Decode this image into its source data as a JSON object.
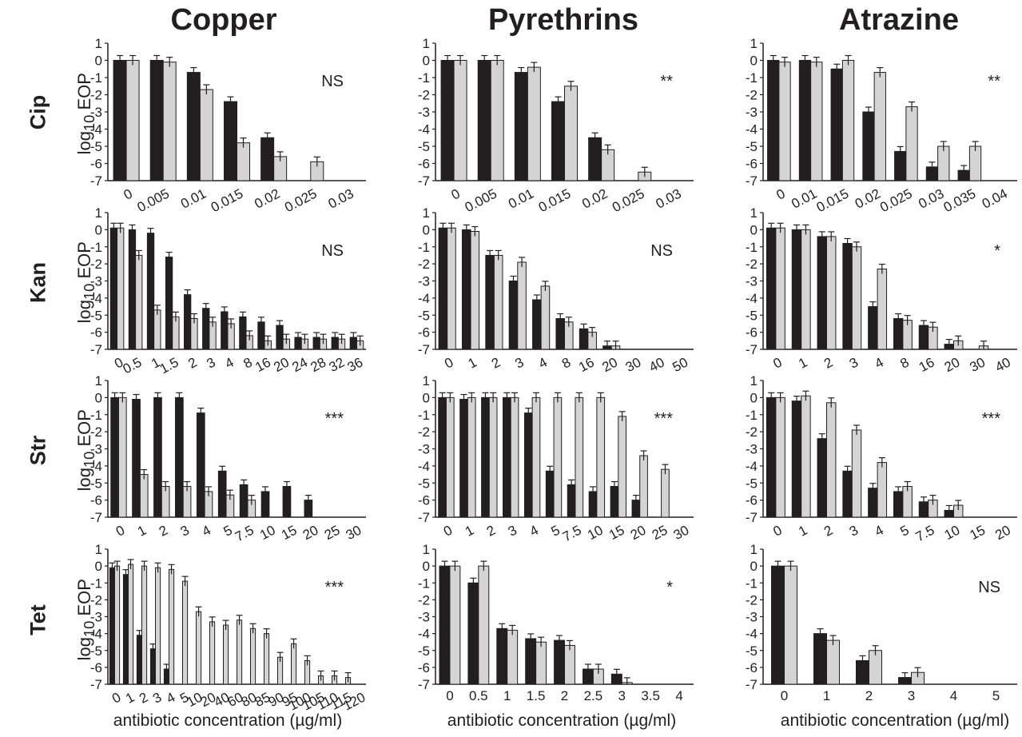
{
  "columns": [
    "Copper",
    "Pyrethrins",
    "Atrazine"
  ],
  "rows": [
    "Cip",
    "Kan",
    "Str",
    "Tet"
  ],
  "ylabel_main": "log",
  "ylabel_sub": "10",
  "ylabel_rest": " EOP",
  "xlabel": "antibiotic concentration (µg/ml)",
  "colors": {
    "series_dark": "#231f20",
    "series_light": "#d4d4d4",
    "axis": "#231f20"
  },
  "chart_data": [
    {
      "type": "bar",
      "row": "Cip",
      "column": "Copper",
      "ylim": [
        -7,
        1
      ],
      "sig": "NS",
      "categories": [
        "0",
        "0.005",
        "0.01",
        "0.015",
        "0.02",
        "0.025",
        "0.03"
      ],
      "series": [
        {
          "values": [
            0,
            0,
            -0.7,
            -2.4,
            -4.5,
            -7,
            -7
          ]
        },
        {
          "values": [
            0,
            -0.1,
            -1.7,
            -4.8,
            -5.6,
            -5.9,
            -7
          ]
        }
      ]
    },
    {
      "type": "bar",
      "row": "Cip",
      "column": "Pyrethrins",
      "ylim": [
        -7,
        1
      ],
      "sig": "**",
      "categories": [
        "0",
        "0.005",
        "0.01",
        "0.015",
        "0.02",
        "0.025",
        "0.03"
      ],
      "series": [
        {
          "values": [
            0,
            0,
            -0.7,
            -2.4,
            -4.5,
            -7,
            -7
          ]
        },
        {
          "values": [
            0,
            0,
            -0.4,
            -1.5,
            -5.2,
            -6.5,
            -7
          ]
        }
      ]
    },
    {
      "type": "bar",
      "row": "Cip",
      "column": "Atrazine",
      "ylim": [
        -7,
        1
      ],
      "sig": "**",
      "categories": [
        "0",
        "0.01",
        "0.015",
        "0.02",
        "0.025",
        "0.03",
        "0.035",
        "0.04"
      ],
      "series": [
        {
          "values": [
            0,
            0,
            -0.5,
            -3.0,
            -5.3,
            -6.2,
            -6.4,
            -7
          ]
        },
        {
          "values": [
            -0.1,
            -0.1,
            0,
            -0.7,
            -2.7,
            -5.0,
            -5.0,
            -7
          ]
        }
      ]
    },
    {
      "type": "bar",
      "row": "Kan",
      "column": "Copper",
      "ylim": [
        -7,
        1
      ],
      "sig": "NS",
      "categories": [
        "0",
        "0.5",
        "1",
        "1.5",
        "2",
        "3",
        "4",
        "8",
        "16",
        "20",
        "24",
        "28",
        "32",
        "36"
      ],
      "series": [
        {
          "values": [
            0.1,
            0,
            -0.2,
            -1.6,
            -3.8,
            -4.6,
            -4.8,
            -5.1,
            -5.4,
            -5.6,
            -6.3,
            -6.3,
            -6.3,
            -6.3
          ]
        },
        {
          "values": [
            0.1,
            -1.5,
            -4.7,
            -5.1,
            -5.2,
            -5.4,
            -5.5,
            -6.2,
            -6.5,
            -6.4,
            -6.4,
            -6.4,
            -6.4,
            -6.5
          ]
        }
      ]
    },
    {
      "type": "bar",
      "row": "Kan",
      "column": "Pyrethrins",
      "ylim": [
        -7,
        1
      ],
      "sig": "NS",
      "categories": [
        "0",
        "1",
        "2",
        "3",
        "4",
        "8",
        "16",
        "20",
        "30",
        "40",
        "50"
      ],
      "series": [
        {
          "values": [
            0.1,
            0,
            -1.5,
            -3.0,
            -4.1,
            -5.2,
            -5.8,
            -6.8,
            -7,
            -7,
            -7
          ]
        },
        {
          "values": [
            0.1,
            -0.1,
            -1.5,
            -1.9,
            -3.3,
            -5.4,
            -6.0,
            -6.8,
            -7,
            -7,
            -7
          ]
        }
      ]
    },
    {
      "type": "bar",
      "row": "Kan",
      "column": "Atrazine",
      "ylim": [
        -7,
        1
      ],
      "sig": "*",
      "categories": [
        "0",
        "1",
        "2",
        "3",
        "4",
        "8",
        "16",
        "20",
        "30",
        "40"
      ],
      "series": [
        {
          "values": [
            0.1,
            0,
            -0.4,
            -0.8,
            -4.5,
            -5.2,
            -5.6,
            -6.7,
            -7,
            -7
          ]
        },
        {
          "values": [
            0.1,
            0,
            -0.4,
            -1.0,
            -2.3,
            -5.3,
            -5.7,
            -6.5,
            -6.8,
            -7
          ]
        }
      ]
    },
    {
      "type": "bar",
      "row": "Str",
      "column": "Copper",
      "ylim": [
        -7,
        1
      ],
      "sig": "***",
      "categories": [
        "0",
        "1",
        "2",
        "3",
        "4",
        "5",
        "7.5",
        "10",
        "15",
        "20",
        "25",
        "30"
      ],
      "series": [
        {
          "values": [
            0,
            -0.1,
            0,
            0,
            -0.9,
            -4.3,
            -5.1,
            -5.5,
            -5.2,
            -6.0,
            -7,
            -7
          ]
        },
        {
          "values": [
            0,
            -4.5,
            -5.2,
            -5.2,
            -5.5,
            -5.7,
            -6.0,
            -7,
            -7,
            -7,
            -7,
            -7
          ]
        }
      ]
    },
    {
      "type": "bar",
      "row": "Str",
      "column": "Pyrethrins",
      "ylim": [
        -7,
        1
      ],
      "sig": "***",
      "categories": [
        "0",
        "1",
        "2",
        "3",
        "4",
        "5",
        "7.5",
        "10",
        "15",
        "20",
        "25",
        "30"
      ],
      "series": [
        {
          "values": [
            0,
            -0.1,
            0,
            0,
            -0.9,
            -4.3,
            -5.1,
            -5.5,
            -5.2,
            -6.0,
            -7,
            -7
          ]
        },
        {
          "values": [
            0,
            0,
            0,
            0,
            0,
            0,
            0,
            0,
            -1.1,
            -3.4,
            -4.2,
            -7
          ]
        }
      ]
    },
    {
      "type": "bar",
      "row": "Str",
      "column": "Atrazine",
      "ylim": [
        -7,
        1
      ],
      "sig": "***",
      "categories": [
        "0",
        "1",
        "2",
        "3",
        "4",
        "5",
        "7.5",
        "10",
        "15",
        "20"
      ],
      "series": [
        {
          "values": [
            0,
            -0.2,
            -2.4,
            -4.3,
            -5.3,
            -5.5,
            -6.1,
            -6.6,
            -7,
            -7
          ]
        },
        {
          "values": [
            0,
            0.1,
            -0.3,
            -1.9,
            -3.8,
            -5.2,
            -6.0,
            -6.3,
            -7,
            -7
          ]
        }
      ]
    },
    {
      "type": "bar",
      "row": "Tet",
      "column": "Copper",
      "ylim": [
        -7,
        1
      ],
      "sig": "***",
      "categories": [
        "0",
        "1",
        "2",
        "3",
        "4",
        "5",
        "10",
        "20",
        "40",
        "60",
        "80",
        "85",
        "90",
        "95",
        "100",
        "105",
        "110",
        "115",
        "120"
      ],
      "series": [
        {
          "values": [
            -0.1,
            -0.5,
            -4.1,
            -4.9,
            -6.1,
            -7,
            -7,
            -7,
            -7,
            -7,
            -7,
            -7,
            -7,
            -7,
            -7,
            -7,
            -7,
            -7,
            -7
          ]
        },
        {
          "values": [
            0,
            0.1,
            0,
            -0.1,
            -0.2,
            -0.9,
            -2.7,
            -3.3,
            -3.5,
            -3.2,
            -3.7,
            -4.0,
            -5.4,
            -4.6,
            -5.6,
            -6.5,
            -6.5,
            -6.6,
            -7
          ]
        }
      ]
    },
    {
      "type": "bar",
      "row": "Tet",
      "column": "Pyrethrins",
      "ylim": [
        -7,
        1
      ],
      "sig": "*",
      "categories": [
        "0",
        "0.5",
        "1",
        "1.5",
        "2",
        "2.5",
        "3",
        "3.5",
        "4"
      ],
      "series": [
        {
          "values": [
            0,
            -1.0,
            -3.7,
            -4.3,
            -4.4,
            -6.1,
            -6.4,
            -7,
            -7
          ]
        },
        {
          "values": [
            0,
            0,
            -3.8,
            -4.5,
            -4.7,
            -6.1,
            -6.9,
            -7,
            -7
          ]
        }
      ]
    },
    {
      "type": "bar",
      "row": "Tet",
      "column": "Atrazine",
      "ylim": [
        -7,
        1
      ],
      "sig": "NS",
      "categories": [
        "0",
        "1",
        "2",
        "3",
        "4",
        "5"
      ],
      "series": [
        {
          "values": [
            0,
            -4.0,
            -5.6,
            -6.6,
            -7,
            -7
          ]
        },
        {
          "values": [
            0,
            -4.4,
            -5.0,
            -6.3,
            -7,
            -7
          ]
        }
      ]
    }
  ]
}
